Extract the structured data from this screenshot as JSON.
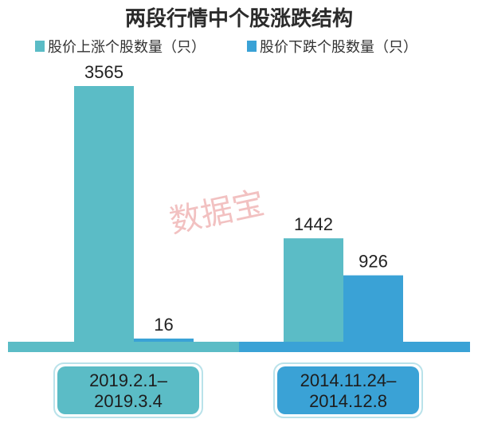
{
  "chart_data": {
    "type": "bar",
    "title": "两段行情中个股涨跌结构",
    "categories": [
      "2019.2.1–\n2019.3.4",
      "2014.11.24–\n2014.12.8"
    ],
    "category_lines": [
      [
        "2019.2.1–",
        "2019.3.4"
      ],
      [
        "2014.11.24–",
        "2014.12.8"
      ]
    ],
    "series": [
      {
        "name": "股价上涨个股数量（只）",
        "values": [
          3565,
          1442
        ],
        "color": "#5bbcc6"
      },
      {
        "name": "股价下跌个股数量（只）",
        "values": [
          16,
          926
        ],
        "color": "#3aa2d6"
      }
    ],
    "value_labels": [
      "3565",
      "1442",
      "16",
      "926"
    ],
    "ylim": [
      0,
      3565
    ],
    "legend_position": "top",
    "grid": false
  },
  "watermark": "数据宝",
  "colors": {
    "baseline_left": "#5bbcc6",
    "baseline_right": "#3aa2d6",
    "date_box_left": "#5bbcc6",
    "date_box_right": "#3aa2d6"
  }
}
